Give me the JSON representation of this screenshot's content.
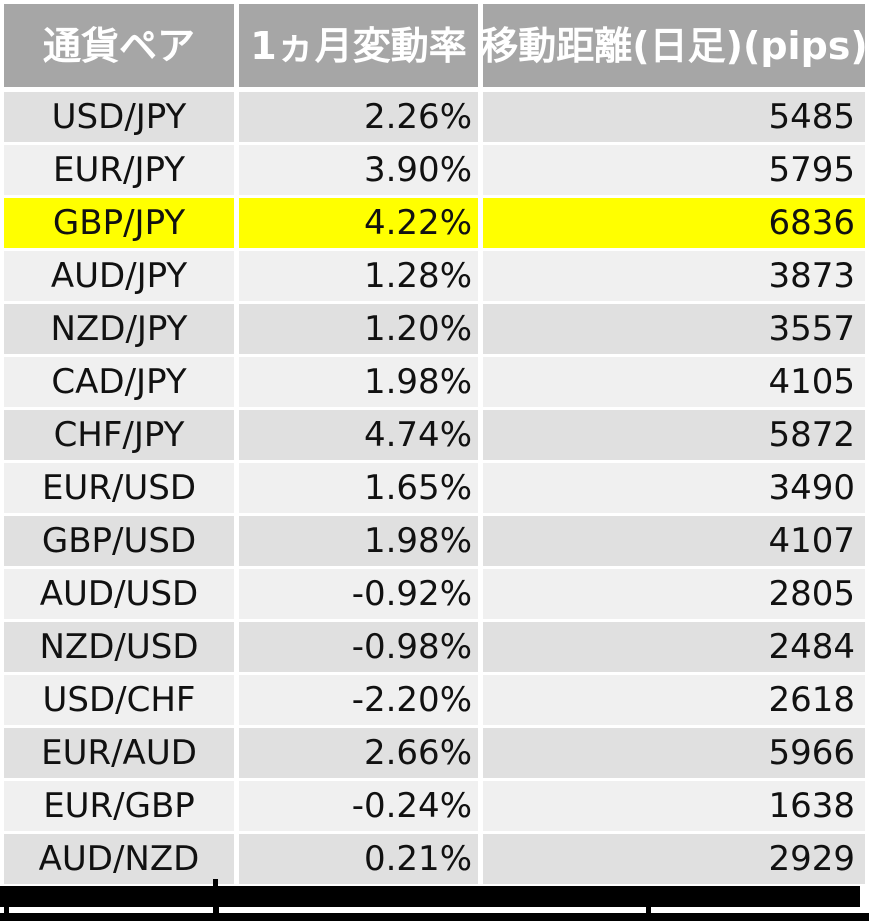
{
  "colors": {
    "header_bg": "#a6a6a6",
    "row_dark": "#e0e0e0",
    "row_light": "#f0f0f0",
    "highlight": "#ffff00",
    "redaction": "#000000",
    "text": "#111111",
    "page_bg": "#ffffff"
  },
  "table": {
    "header": {
      "pair": "通貨ペア",
      "change": "1ヵ月変動率",
      "distance": "移動距離(日足)(pips)"
    },
    "rows": [
      {
        "pair": "USD/JPY",
        "change": "2.26%",
        "distance": "5485",
        "highlight": false
      },
      {
        "pair": "EUR/JPY",
        "change": "3.90%",
        "distance": "5795",
        "highlight": false
      },
      {
        "pair": "GBP/JPY",
        "change": "4.22%",
        "distance": "6836",
        "highlight": true
      },
      {
        "pair": "AUD/JPY",
        "change": "1.28%",
        "distance": "3873",
        "highlight": false
      },
      {
        "pair": "NZD/JPY",
        "change": "1.20%",
        "distance": "3557",
        "highlight": false
      },
      {
        "pair": "CAD/JPY",
        "change": "1.98%",
        "distance": "4105",
        "highlight": false
      },
      {
        "pair": "CHF/JPY",
        "change": "4.74%",
        "distance": "5872",
        "highlight": false
      },
      {
        "pair": "EUR/USD",
        "change": "1.65%",
        "distance": "3490",
        "highlight": false
      },
      {
        "pair": "GBP/USD",
        "change": "1.98%",
        "distance": "4107",
        "highlight": false
      },
      {
        "pair": "AUD/USD",
        "change": "-0.92%",
        "distance": "2805",
        "highlight": false
      },
      {
        "pair": "NZD/USD",
        "change": "-0.98%",
        "distance": "2484",
        "highlight": false
      },
      {
        "pair": "USD/CHF",
        "change": "-2.20%",
        "distance": "2618",
        "highlight": false
      },
      {
        "pair": "EUR/AUD",
        "change": "2.66%",
        "distance": "5966",
        "highlight": false
      },
      {
        "pair": "EUR/GBP",
        "change": "-0.24%",
        "distance": "1638",
        "highlight": false
      },
      {
        "pair": "AUD/NZD",
        "change": "0.21%",
        "distance": "2929",
        "highlight": false
      }
    ]
  },
  "chart_data": {
    "type": "table",
    "title": "",
    "columns": [
      "通貨ペア",
      "1ヵ月変動率",
      "移動距離(日足)(pips)"
    ],
    "rows": [
      {
        "pair": "USD/JPY",
        "monthly_change_pct": 2.26,
        "distance_pips": 5485
      },
      {
        "pair": "EUR/JPY",
        "monthly_change_pct": 3.9,
        "distance_pips": 5795
      },
      {
        "pair": "GBP/JPY",
        "monthly_change_pct": 4.22,
        "distance_pips": 6836
      },
      {
        "pair": "AUD/JPY",
        "monthly_change_pct": 1.28,
        "distance_pips": 3873
      },
      {
        "pair": "NZD/JPY",
        "monthly_change_pct": 1.2,
        "distance_pips": 3557
      },
      {
        "pair": "CAD/JPY",
        "monthly_change_pct": 1.98,
        "distance_pips": 4105
      },
      {
        "pair": "CHF/JPY",
        "monthly_change_pct": 4.74,
        "distance_pips": 5872
      },
      {
        "pair": "EUR/USD",
        "monthly_change_pct": 1.65,
        "distance_pips": 3490
      },
      {
        "pair": "GBP/USD",
        "monthly_change_pct": 1.98,
        "distance_pips": 4107
      },
      {
        "pair": "AUD/USD",
        "monthly_change_pct": -0.92,
        "distance_pips": 2805
      },
      {
        "pair": "NZD/USD",
        "monthly_change_pct": -0.98,
        "distance_pips": 2484
      },
      {
        "pair": "USD/CHF",
        "monthly_change_pct": -2.2,
        "distance_pips": 2618
      },
      {
        "pair": "EUR/AUD",
        "monthly_change_pct": 2.66,
        "distance_pips": 5966
      },
      {
        "pair": "EUR/GBP",
        "monthly_change_pct": -0.24,
        "distance_pips": 1638
      },
      {
        "pair": "AUD/NZD",
        "monthly_change_pct": 0.21,
        "distance_pips": 2929
      }
    ],
    "highlighted_row": "GBP/JPY",
    "layout_hints": {
      "banding": "alternating gray rows",
      "highlight_color": "#ffff00",
      "bottom": "black redaction bars"
    }
  }
}
